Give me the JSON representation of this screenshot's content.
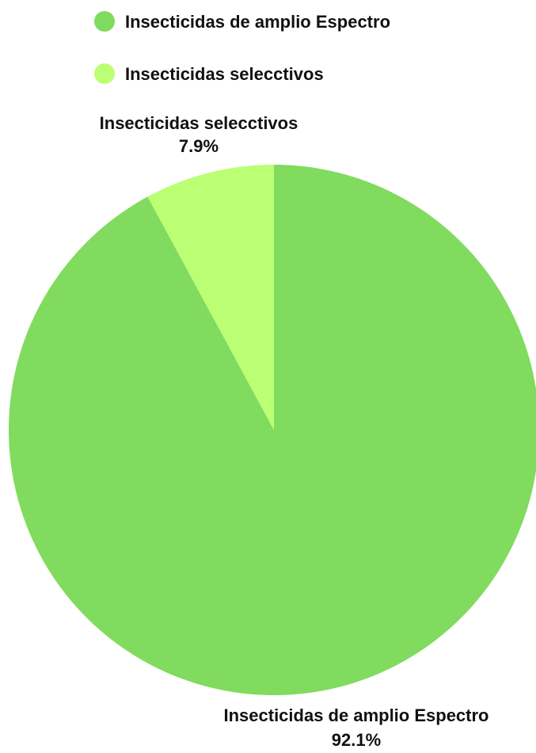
{
  "chart_data": {
    "type": "pie",
    "title": "",
    "legend_position": "top",
    "slices": [
      {
        "label": "Insecticidas de amplio Espectro",
        "value": 92.1,
        "display": "92.1%",
        "color": "#80DB5E"
      },
      {
        "label": "Insecticidas selecctivos",
        "value": 7.9,
        "display": "7.9%",
        "color": "#BBFF74"
      }
    ]
  }
}
